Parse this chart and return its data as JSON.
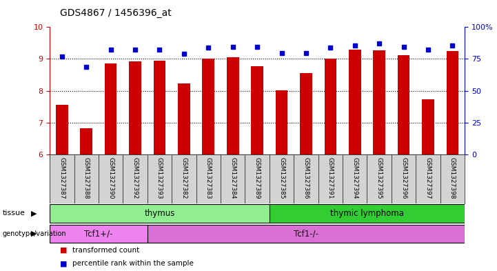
{
  "title": "GDS4867 / 1456396_at",
  "samples": [
    "GSM1327387",
    "GSM1327388",
    "GSM1327390",
    "GSM1327392",
    "GSM1327393",
    "GSM1327382",
    "GSM1327383",
    "GSM1327384",
    "GSM1327389",
    "GSM1327385",
    "GSM1327386",
    "GSM1327391",
    "GSM1327394",
    "GSM1327395",
    "GSM1327396",
    "GSM1327397",
    "GSM1327398"
  ],
  "red_values": [
    7.55,
    6.82,
    8.85,
    8.92,
    8.95,
    8.22,
    9.02,
    9.05,
    8.78,
    8.02,
    8.55,
    9.02,
    9.3,
    9.28,
    9.12,
    7.73,
    9.25
  ],
  "blue_values": [
    9.08,
    8.75,
    9.3,
    9.3,
    9.3,
    9.17,
    9.35,
    9.38,
    9.38,
    9.18,
    9.18,
    9.35,
    9.42,
    9.48,
    9.38,
    9.3,
    9.42
  ],
  "ylim_left": [
    6,
    10
  ],
  "yticks_left": [
    6,
    7,
    8,
    9,
    10
  ],
  "hlines": [
    7,
    8,
    9
  ],
  "tissue_groups": [
    {
      "label": "thymus",
      "start": 0,
      "end": 8,
      "color": "#90ee90"
    },
    {
      "label": "thymic lymphoma",
      "start": 9,
      "end": 16,
      "color": "#32cd32"
    }
  ],
  "genotype_groups": [
    {
      "label": "Tcf1+/-",
      "start": 0,
      "end": 3,
      "color": "#ee82ee"
    },
    {
      "label": "Tcf1-/-",
      "start": 4,
      "end": 16,
      "color": "#da70d6"
    }
  ],
  "bar_color": "#cc0000",
  "dot_color": "#0000cc",
  "bg_color": "#ffffff",
  "tick_label_bg": "#d3d3d3",
  "left_axis_color": "#cc0000",
  "right_axis_color": "#0000cc",
  "legend_items": [
    {
      "color": "#cc0000",
      "label": "transformed count"
    },
    {
      "color": "#0000cc",
      "label": "percentile rank within the sample"
    }
  ]
}
